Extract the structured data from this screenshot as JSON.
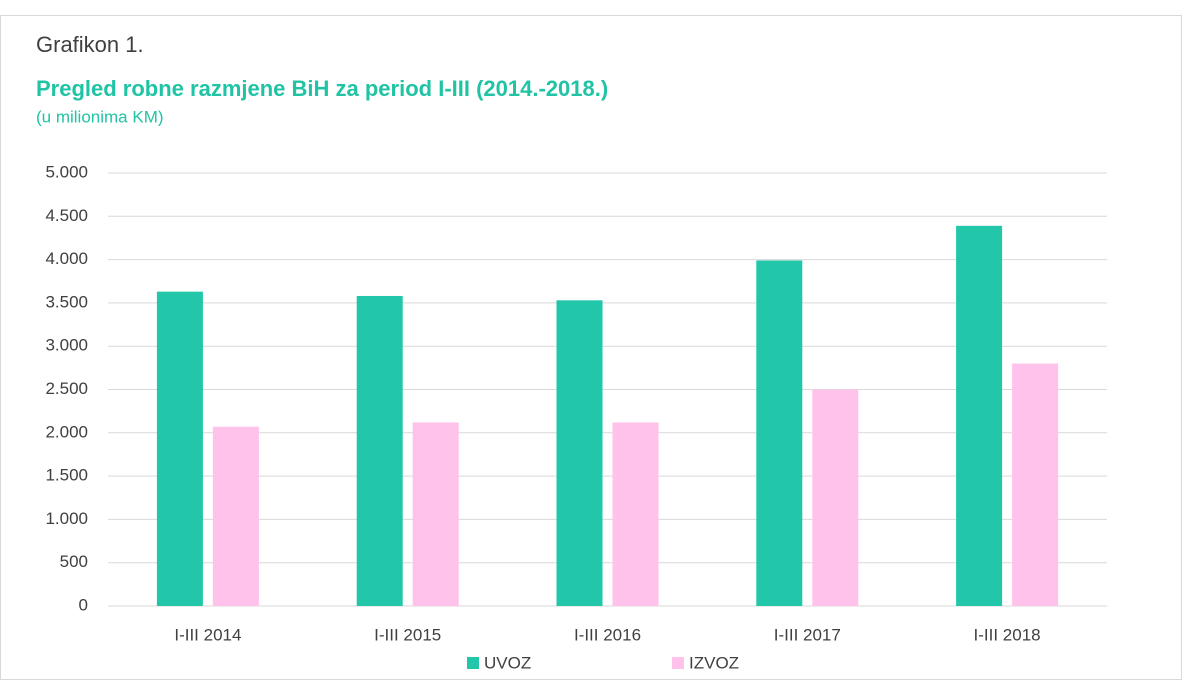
{
  "chart_data": {
    "type": "bar",
    "title_prefix": "Grafikon 1.",
    "title": "Pregled robne razmjene BiH za period I-III (2014.-2018.)",
    "subtitle": "(u milionima KM)",
    "categories": [
      "I-III 2014",
      "I-III 2015",
      "I-III 2016",
      "I-III 2017",
      "I-III 2018"
    ],
    "series": [
      {
        "name": "UVOZ",
        "color": "#22c7a9",
        "values": [
          3630,
          3580,
          3530,
          3990,
          4390
        ]
      },
      {
        "name": "IZVOZ",
        "color": "#ffc2ea",
        "values": [
          2070,
          2120,
          2120,
          2500,
          2800
        ]
      }
    ],
    "ylim": [
      0,
      5000
    ],
    "yticks": [
      0,
      500,
      {
        "value": 1000,
        "label": "1.000"
      },
      {
        "value": 1500,
        "label": "1.500"
      },
      {
        "value": 2000,
        "label": "2.000"
      },
      {
        "value": 2500,
        "label": "2.500"
      },
      {
        "value": 3000,
        "label": "3.000"
      },
      {
        "value": 3500,
        "label": "3.500"
      },
      {
        "value": 4000,
        "label": "4.000"
      },
      {
        "value": 4500,
        "label": "4.500"
      },
      {
        "value": 5000,
        "label": "5.000"
      }
    ],
    "grid": true,
    "legend": "bottom"
  }
}
